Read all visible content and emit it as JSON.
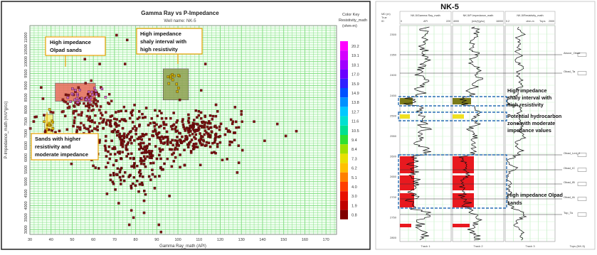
{
  "chart_data": [
    {
      "type": "scatter",
      "title": "Gamma Ray vs P-Impedance",
      "subtitle": "Well name: NK-5",
      "xlabel": "Gamma Ray_math (API)",
      "ylabel": "P-Impedance_math (m/s*g/cc)",
      "xlim": [
        30,
        175
      ],
      "ylim": [
        2800,
        11500
      ],
      "xticks": [
        30,
        40,
        50,
        60,
        70,
        80,
        90,
        100,
        110,
        120,
        130,
        140,
        150,
        160,
        170
      ],
      "yticks": [
        3000,
        3500,
        4000,
        4500,
        5000,
        5500,
        6000,
        6500,
        7000,
        7500,
        8000,
        8500,
        9000,
        9500,
        10000,
        10500,
        11000
      ],
      "grid": true,
      "color_key": {
        "title": [
          "Color Key",
          "Resistivity_math",
          "(ohm-m)"
        ],
        "values": [
          "20.2",
          "19.1",
          "18.1",
          "17.0",
          "15.9",
          "14.9",
          "13.8",
          "12.7",
          "11.6",
          "10.5",
          "9.4",
          "8.4",
          "7.3",
          "6.2",
          "5.1",
          "4.0",
          "3.0",
          "1.9",
          "0.8"
        ],
        "colors": [
          "#ff00ff",
          "#d400ff",
          "#a000ff",
          "#6a00ff",
          "#3020ff",
          "#0050ff",
          "#0090ff",
          "#00c8ff",
          "#00e0d0",
          "#00e090",
          "#30e030",
          "#a0e000",
          "#e8e000",
          "#ffc000",
          "#ff8000",
          "#ff4000",
          "#e81000",
          "#c00000",
          "#800000"
        ]
      },
      "clusters": [
        {
          "x": 78,
          "y": 6800,
          "sx": 20,
          "sy": 600,
          "n": 380,
          "color": "#7a1010"
        },
        {
          "x": 110,
          "y": 7100,
          "sx": 8,
          "sy": 380,
          "n": 160,
          "color": "#7a1010"
        },
        {
          "x": 56,
          "y": 8100,
          "sx": 6,
          "sy": 450,
          "n": 90,
          "color": "#8b1c1c"
        },
        {
          "x": 80,
          "y": 5300,
          "sx": 8,
          "sy": 400,
          "n": 60,
          "color": "#6e0e0e"
        },
        {
          "x": 56,
          "y": 8600,
          "sx": 5,
          "sy": 250,
          "n": 30,
          "color": "#c060c0"
        },
        {
          "x": 98,
          "y": 9100,
          "sx": 3,
          "sy": 250,
          "n": 12,
          "color": "#c8b400"
        },
        {
          "x": 39,
          "y": 7400,
          "sx": 1.6,
          "sy": 250,
          "n": 12,
          "color": "#d8c000"
        }
      ],
      "outliers": [
        [
          78,
          3800
        ],
        [
          79,
          3500
        ],
        [
          77,
          3200
        ],
        [
          84,
          3700
        ],
        [
          84,
          4200
        ],
        [
          72,
          4100
        ],
        [
          91,
          3200
        ],
        [
          92,
          2900
        ],
        [
          156,
          7100
        ],
        [
          151,
          6900
        ],
        [
          141,
          6700
        ],
        [
          136,
          7500
        ],
        [
          147,
          7400
        ],
        [
          116,
          6200
        ],
        [
          121,
          5900
        ],
        [
          56,
          10100
        ],
        [
          61,
          10400
        ],
        [
          71,
          11100
        ],
        [
          76,
          10900
        ],
        [
          75,
          9900
        ],
        [
          63,
          9900
        ],
        [
          84,
          10500
        ],
        [
          113,
          9900
        ],
        [
          111,
          8800
        ],
        [
          118,
          8200
        ],
        [
          127,
          8100
        ],
        [
          130,
          7800
        ],
        [
          126,
          7500
        ],
        [
          66,
          5600
        ],
        [
          71,
          5300
        ],
        [
          73,
          4900
        ],
        [
          96,
          4400
        ],
        [
          101,
          5600
        ],
        [
          87,
          6100
        ]
      ],
      "highlight_boxes": [
        {
          "name": "olpad-sands",
          "x": [
            42,
            61
          ],
          "y": [
            8350,
            9100
          ],
          "fill": "#e86a5a"
        },
        {
          "name": "shaly-interval",
          "x": [
            93,
            105
          ],
          "y": [
            8400,
            9700
          ],
          "fill": "#8da050"
        },
        {
          "name": "resistive-sands",
          "x": [
            37,
            41
          ],
          "y": [
            7000,
            7800
          ],
          "fill": "#f2f07a"
        }
      ],
      "annotations": [
        {
          "name": "olpad-annotation",
          "lines": [
            "High impedance",
            "Olpad sands"
          ]
        },
        {
          "name": "shaly-annotation",
          "lines": [
            "High impedance",
            "shaly interval with",
            "high resistivity"
          ]
        },
        {
          "name": "sands-annotation",
          "lines": [
            "Sands with higher",
            "resistivity and",
            "moderate impedance"
          ]
        }
      ]
    },
    {
      "type": "well-log",
      "title": "NK-5",
      "depth_header": [
        "MD (m)",
        "True",
        "ID"
      ],
      "tracks": [
        {
          "header": "NK-5/Gamma Ray_math",
          "min": "0",
          "unit": "API",
          "max": "220",
          "footer": "Track 1"
        },
        {
          "header": "NK-5/P-Impedance_math",
          "min": "4000",
          "unit": "(m/s)*(g/cc)",
          "max": "16000",
          "footer": "Track 2"
        },
        {
          "header": "NK-5/Resistivity_math",
          "min": "0.2",
          "unit": "ohm-m",
          "max": "2000",
          "footer": "Track 3"
        }
      ],
      "tops_header": "Tops",
      "tops_footer": "Tops (NK-5)",
      "depth_ticks": [
        "2300",
        "2350",
        "2400",
        "2450",
        "2500",
        "2550",
        "2600",
        "2650",
        "2700",
        "2750",
        "2800"
      ],
      "tops": [
        "Above_Obad",
        "Obad_Ta",
        "Obad_Lmt_J",
        "Obad_IC",
        "Obad_IB",
        "Obad_IA",
        "Top_Ta"
      ],
      "annotations": [
        {
          "name": "shaly-interval-note",
          "lines": [
            "High impedance",
            "shaly interval with",
            "high resistivity"
          ]
        },
        {
          "name": "hydrocarbon-note",
          "lines": [
            "Potential hydrocarbon",
            "zone with moderate",
            "impedance values"
          ]
        },
        {
          "name": "olpad-note",
          "lines": [
            "High impedance Olpad",
            "sands"
          ]
        }
      ]
    }
  ]
}
